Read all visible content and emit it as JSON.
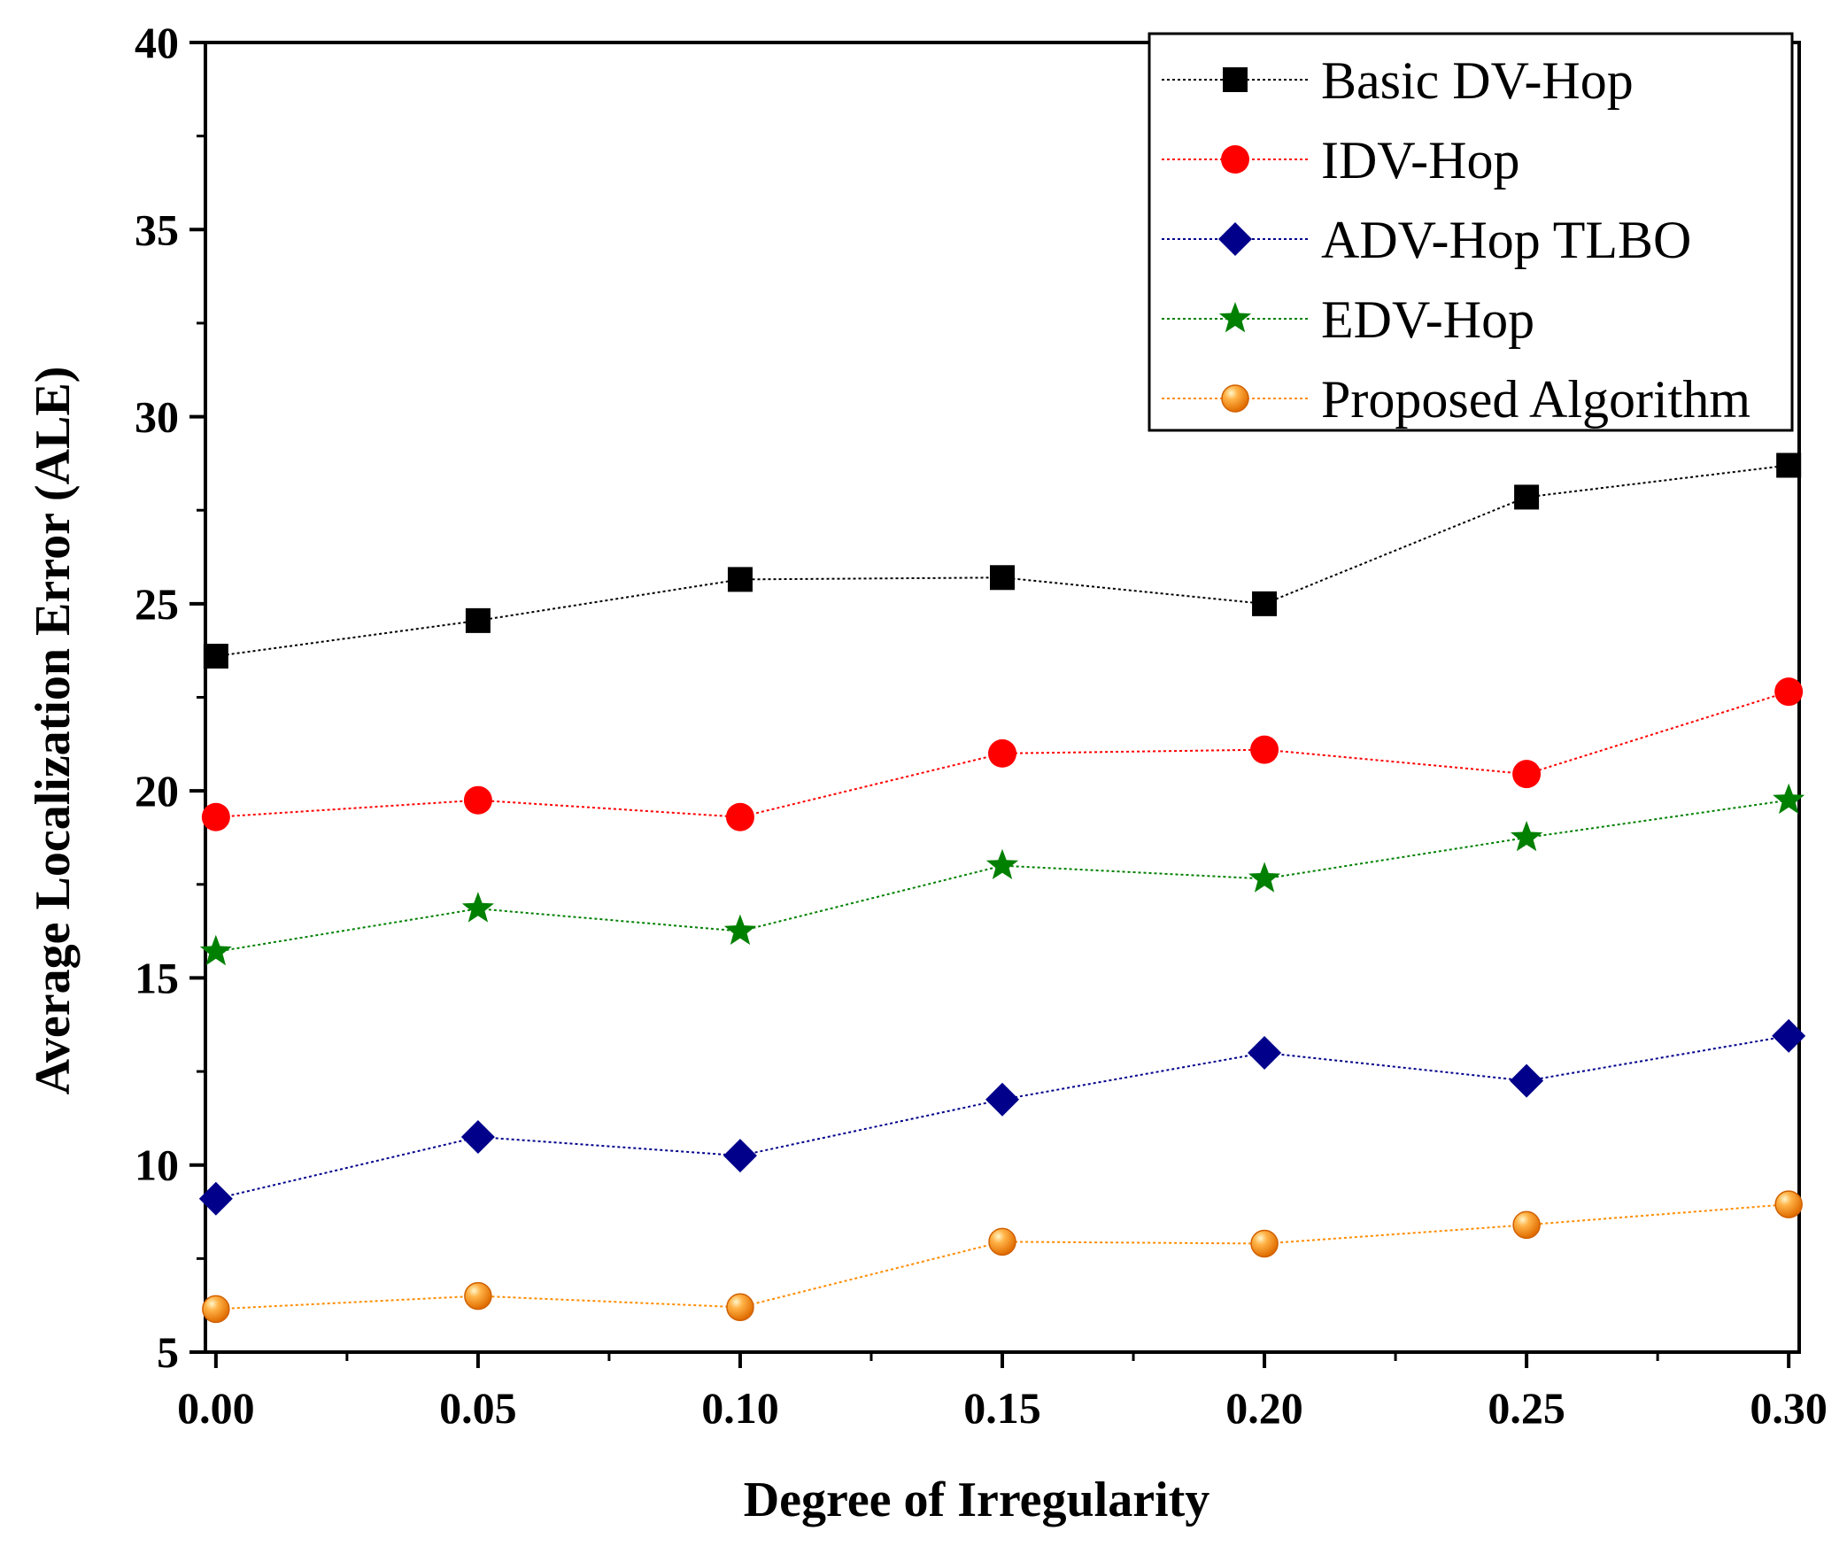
{
  "chart_data": {
    "type": "line",
    "title": "",
    "xlabel": "Degree of Irregularity",
    "ylabel": "Average Localization Error (ALE)",
    "x": [
      0.0,
      0.05,
      0.1,
      0.15,
      0.2,
      0.25,
      0.3
    ],
    "xtick_labels": [
      "0.00",
      "0.05",
      "0.10",
      "0.15",
      "0.20",
      "0.25",
      "0.30"
    ],
    "xlim": [
      -0.002,
      0.302
    ],
    "ylim": [
      5,
      40
    ],
    "yticks": [
      5,
      10,
      15,
      20,
      25,
      30,
      35,
      40
    ],
    "ytick_labels": [
      "5",
      "10",
      "15",
      "20",
      "25",
      "30",
      "35",
      "40"
    ],
    "legend_position": "top-right",
    "grid": false,
    "series": [
      {
        "name": "Basic DV-Hop",
        "marker": "square",
        "color": "#000000",
        "values": [
          23.6,
          24.55,
          25.65,
          25.7,
          25.0,
          27.85,
          28.7
        ]
      },
      {
        "name": "IDV-Hop",
        "marker": "circle",
        "color": "#ff0000",
        "values": [
          19.3,
          19.75,
          19.3,
          21.0,
          21.1,
          20.45,
          22.65
        ]
      },
      {
        "name": "ADV-Hop TLBO",
        "marker": "diamond",
        "color": "#00008b",
        "values": [
          9.1,
          10.75,
          10.25,
          11.75,
          13.0,
          12.25,
          13.45
        ]
      },
      {
        "name": "EDV-Hop",
        "marker": "star",
        "color": "#008000",
        "values": [
          15.7,
          16.85,
          16.25,
          18.0,
          17.65,
          18.75,
          19.75
        ]
      },
      {
        "name": "Proposed Algorithm",
        "marker": "ball",
        "color": "#ff8c00",
        "values": [
          6.15,
          6.5,
          6.2,
          7.95,
          7.9,
          8.4,
          8.95
        ]
      }
    ]
  }
}
